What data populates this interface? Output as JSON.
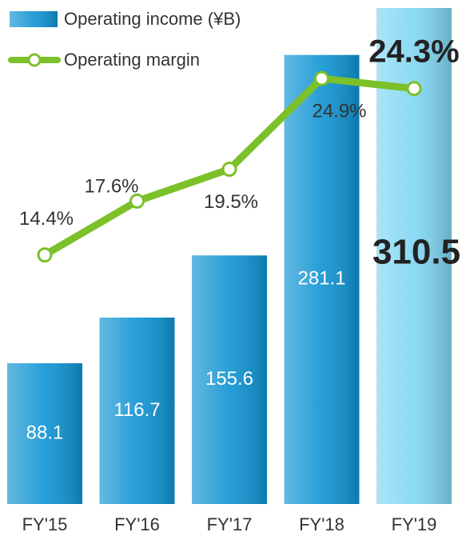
{
  "chart_data": {
    "type": "bar",
    "categories": [
      "FY'15",
      "FY'16",
      "FY'17",
      "FY'18",
      "FY'19"
    ],
    "series": [
      {
        "name": "Operating income (¥B)",
        "type": "bar",
        "values": [
          88.1,
          116.7,
          155.6,
          281.1,
          310.5
        ],
        "colors": [
          "#0f93d2",
          "#0f93d2",
          "#0f93d2",
          "#0f93d2",
          "#7fd6f2"
        ]
      },
      {
        "name": "Operating margin",
        "type": "line",
        "color": "#7cc02a",
        "values": [
          14.4,
          17.6,
          19.5,
          24.9,
          24.3
        ],
        "value_labels": [
          "14.4%",
          "17.6%",
          "19.5%",
          "24.9%",
          "24.3%"
        ]
      }
    ]
  }
}
